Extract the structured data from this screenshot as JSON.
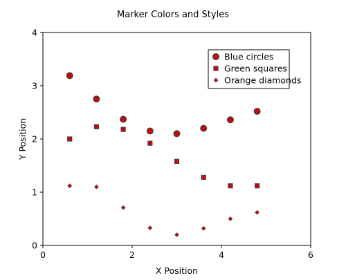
{
  "chart_data": {
    "type": "scatter",
    "title": "Marker Colors and Styles",
    "xlabel": "X Position",
    "ylabel": "Y Position",
    "xlim": [
      0,
      6
    ],
    "ylim": [
      0,
      4
    ],
    "xticks": [
      "0",
      "2",
      "4",
      "6"
    ],
    "yticks": [
      "0",
      "1",
      "2",
      "3",
      "4"
    ],
    "grid": false,
    "legend": "top-right",
    "series": [
      {
        "name": "Blue circles",
        "marker": "circle",
        "face_color": "#e00000",
        "edge_color": "#404040",
        "points": [
          [
            0.6,
            3.19
          ],
          [
            1.2,
            2.75
          ],
          [
            1.8,
            2.37
          ],
          [
            2.4,
            2.15
          ],
          [
            3.0,
            2.1
          ],
          [
            3.6,
            2.2
          ],
          [
            4.2,
            2.36
          ],
          [
            4.8,
            2.52
          ]
        ]
      },
      {
        "name": "Green squares",
        "marker": "square",
        "face_color": "#e00000",
        "edge_color": "#404040",
        "points": [
          [
            0.6,
            2.0
          ],
          [
            1.2,
            2.23
          ],
          [
            1.8,
            2.18
          ],
          [
            2.4,
            1.92
          ],
          [
            3.0,
            1.58
          ],
          [
            3.6,
            1.28
          ],
          [
            4.2,
            1.12
          ],
          [
            4.8,
            1.12
          ]
        ]
      },
      {
        "name": "Orange diamonds",
        "marker": "diamond",
        "face_color": "#e00000",
        "edge_color": "#404040",
        "points": [
          [
            0.6,
            1.12
          ],
          [
            1.2,
            1.1
          ],
          [
            1.8,
            0.71
          ],
          [
            2.4,
            0.33
          ],
          [
            3.0,
            0.2
          ],
          [
            3.6,
            0.32
          ],
          [
            4.2,
            0.5
          ],
          [
            4.8,
            0.62
          ]
        ]
      }
    ]
  }
}
